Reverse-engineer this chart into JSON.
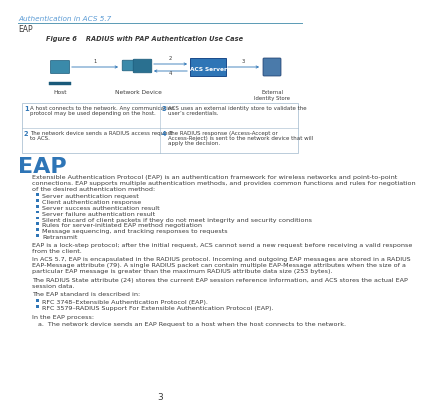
{
  "page_header": "Authentication in ACS 5.7",
  "section_header": "EAP",
  "figure_label": "Figure 6    RADIUS with PAP Authentication Use Case",
  "header_line_color": "#5a9ab5",
  "header_text_color": "#5b9bd5",
  "section_text_color": "#2e75b6",
  "body_text_color": "#3a3a3a",
  "table_border_color": "#a0b8cc",
  "eap_heading": "EAP",
  "eap_intro_lines": [
    "Extensible Authentication Protocol (EAP) is an authentication framework for wireless networks and point-to-point",
    "connections. EAP supports multiple authentication methods, and provides common functions and rules for negotiation",
    "of the desired authentication method:"
  ],
  "bullets": [
    "Server authentication request",
    "Client authentication response",
    "Server success authentication result",
    "Server failure authentication result",
    "Silent discard of client packets if they do not meet integrity and security conditions",
    "Rules for server-initiated EAP method negotiation",
    "Message sequencing, and tracking responses to requests",
    "Retransmit"
  ],
  "para1_lines": [
    "EAP is a lock-step protocol; after the initial request, ACS cannot send a new request before receiving a valid response",
    "from the client."
  ],
  "para2_lines": [
    "In ACS 5.7, EAP is encapsulated in the RADIUS protocol. Incoming and outgoing EAP messages are stored in a RADIUS",
    "EAP-Message attribute (79). A single RADIUS packet can contain multiple EAP-Message attributes when the size of a",
    "particular EAP message is greater than the maximum RADIUS attribute data size (253 bytes)."
  ],
  "para3_lines": [
    "The RADIUS State attribute (24) stores the current EAP session reference information, and ACS stores the actual EAP",
    "session data."
  ],
  "para4": "The EAP standard is described in:",
  "rfc_bullets": [
    "RFC 3748–Extensible Authentication Protocol (EAP).",
    "RFC 3579–RADIUS Support For Extensible Authentication Protocol (EAP)."
  ],
  "para5": "In the EAP process:",
  "numbered_lines": [
    "a.  The network device sends an EAP Request to a host when the host connects to the network."
  ],
  "page_num": "3",
  "table_rows": [
    {
      "num_l": "1",
      "text_l": [
        "A host connects to the network. Any communication",
        "protocol may be used depending on the host."
      ],
      "num_r": "3",
      "text_r": [
        "ACS uses an external identity store to validate the",
        "user’s credentials."
      ]
    },
    {
      "num_l": "2",
      "text_l": [
        "The network device sends a RADIUS access request",
        "to ACS."
      ],
      "num_r": "4",
      "text_r": [
        "The RADIUS response (Access-Accept or",
        "Access-Reject) is sent to the network device that will",
        "apply the decision."
      ]
    }
  ],
  "bg_color": "#ffffff",
  "arrow_color": "#2e75b6",
  "diagram_teal": "#3a8aaa",
  "diagram_dark": "#1a5a7a",
  "acs_blue": "#2e75b6",
  "ext_blue": "#4a7aaa"
}
